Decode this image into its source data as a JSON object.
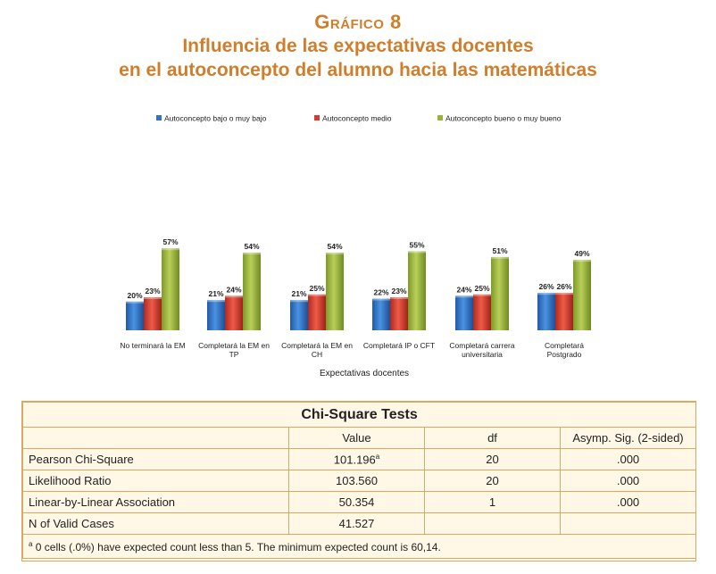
{
  "title_line1": "Gráfico 8",
  "title_line2": "Influencia de las expectativas docentes",
  "title_line3": "en el autoconcepto del alumno hacia las matemáticas",
  "colors": {
    "title": "#d07e2c",
    "low": "#2f74c8",
    "mid": "#d93a2b",
    "high": "#9ab43a"
  },
  "chart_data": {
    "type": "bar",
    "xlabel": "Expectativas docentes",
    "ylabel": "",
    "ylim": [
      0,
      60
    ],
    "grid": false,
    "legend": "top",
    "value_suffix": "%",
    "categories": [
      [
        "No terminará la EM"
      ],
      [
        "Completará la EM en",
        "TP"
      ],
      [
        "Completará la EM en",
        "CH"
      ],
      [
        "Completará IP o CFT"
      ],
      [
        "Completará carrera",
        "universitaria"
      ],
      [
        "Completará",
        "Postgrado"
      ]
    ],
    "series": [
      {
        "name": "Autoconcepto bajo o muy bajo",
        "color": "#2f74c8",
        "values": [
          20,
          21,
          21,
          22,
          24,
          26
        ]
      },
      {
        "name": "Autoconcepto medio",
        "color": "#d93a2b",
        "values": [
          23,
          24,
          25,
          23,
          25,
          26
        ]
      },
      {
        "name": "Autoconcepto bueno o muy bueno",
        "color": "#9ab43a",
        "values": [
          57,
          54,
          54,
          55,
          51,
          49
        ]
      }
    ]
  },
  "table": {
    "caption": "Chi-Square Tests",
    "headers": [
      "",
      "Value",
      "df",
      "Asymp. Sig. (2-sided)"
    ],
    "rows": [
      {
        "label": "Pearson Chi-Square",
        "value": "101.196",
        "sup": "a",
        "df": "20",
        "sig": ".000"
      },
      {
        "label": "Likelihood Ratio",
        "value": "103.560",
        "sup": "",
        "df": "20",
        "sig": ".000"
      },
      {
        "label": "Linear-by-Linear Association",
        "value": "50.354",
        "sup": "",
        "df": "1",
        "sig": ".000"
      },
      {
        "label": "N of Valid Cases",
        "value": "41.527",
        "sup": "",
        "df": "",
        "sig": ""
      }
    ],
    "footnote_mark": "a",
    "footnote": " 0 cells (.0%) have expected count less than 5. The minimum expected count is 60,14."
  }
}
